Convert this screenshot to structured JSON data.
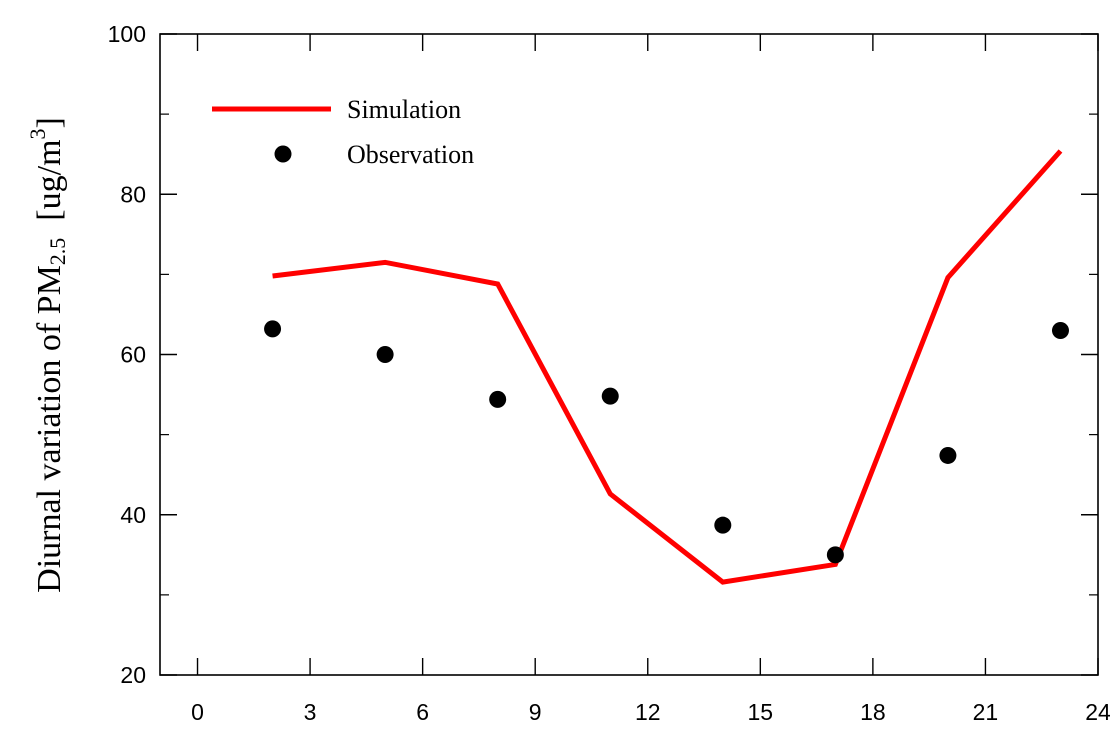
{
  "chart_data": {
    "type": "line",
    "title": "",
    "xlabel": "",
    "ylabel": {
      "prefix": "Diurnal variation of PM",
      "subscript": "2.5",
      "unit_open": "  [ug/m",
      "superscript": "3",
      "unit_close": "]"
    },
    "xlim": [
      -1,
      24
    ],
    "ylim": [
      20,
      100
    ],
    "x_ticks": [
      0,
      3,
      6,
      9,
      12,
      15,
      18,
      21,
      24
    ],
    "y_ticks": [
      20,
      40,
      60,
      80,
      100
    ],
    "y_minor_ticks": [
      30,
      50,
      70,
      90
    ],
    "grid": false,
    "legend_placement": "top-left",
    "series": [
      {
        "name": "Simulation",
        "style": "line",
        "color": "#ff0000",
        "x": [
          2,
          5,
          8,
          11,
          14,
          17,
          20,
          23
        ],
        "y": [
          69.8,
          71.5,
          68.8,
          42.6,
          31.6,
          33.8,
          69.6,
          85.4
        ]
      },
      {
        "name": "Observation",
        "style": "marker",
        "color": "#000000",
        "x": [
          2,
          5,
          8,
          11,
          14,
          17,
          20,
          23
        ],
        "y": [
          63.2,
          60.0,
          54.4,
          54.8,
          38.7,
          35.0,
          47.4,
          63.0
        ]
      }
    ]
  }
}
